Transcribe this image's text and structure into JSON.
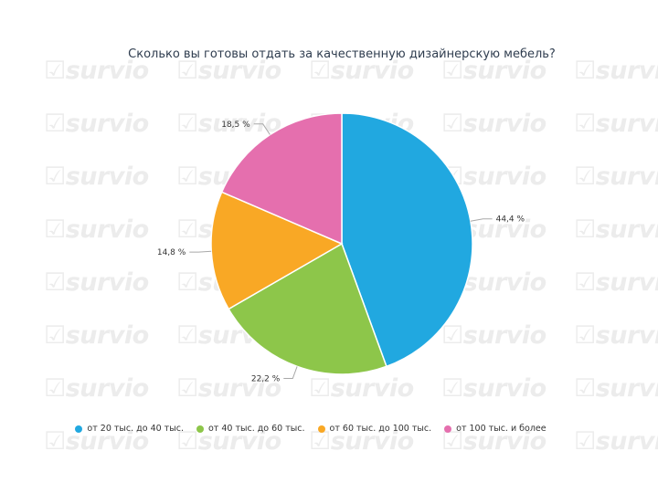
{
  "watermark_text": "survio",
  "chart_data": {
    "type": "pie",
    "title": "Сколько вы готовы отдать за качественную дизайнерскую мебель?",
    "series": [
      {
        "name": "от 20 тыс. до 40 тыс.",
        "value": 44.4,
        "label": "44,4 %",
        "color": "#21a8e0"
      },
      {
        "name": "от 40 тыс. до 60 тыс.",
        "value": 22.2,
        "label": "22,2 %",
        "color": "#8dc64a"
      },
      {
        "name": "от 60 тыс. до 100 тыс.",
        "value": 14.8,
        "label": "14,8 %",
        "color": "#f9a825"
      },
      {
        "name": "от 100 тыс. и более",
        "value": 18.5,
        "label": "18,5 %",
        "color": "#e56fae"
      }
    ],
    "legend_position": "bottom"
  }
}
